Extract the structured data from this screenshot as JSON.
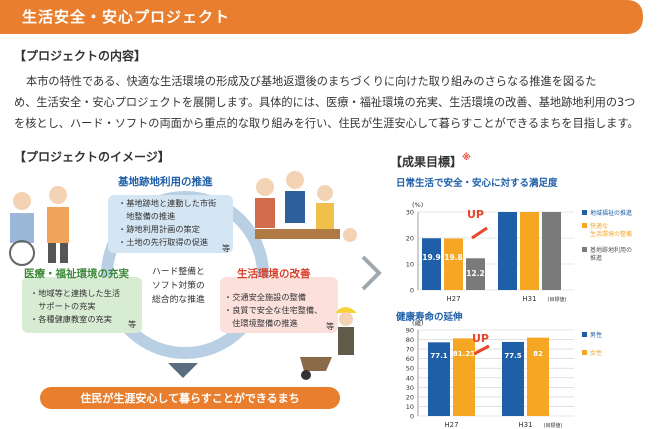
{
  "header": {
    "title": "生活安全・安心プロジェクト"
  },
  "section1": {
    "heading": "【プロジェクトの内容】",
    "lines": [
      "本市の特性である、快適な生活環境の形成及び基地返還後のまちづくりに向けた取り組みのさらなる推進を図るた",
      "め、生活安全・安心プロジェクトを展開します。具体的には、医療・福祉環境の充実、生活環境の改善、基地跡地利用の3つ",
      "を核とし、ハード・ソフトの両面から重点的な取り組みを行い、住民が生涯安心して暮らすことができるまちを目指します。"
    ]
  },
  "section2": {
    "heading": "【プロジェクトのイメージ】",
    "center": [
      "ハード整備と",
      "ソフト対策の",
      "総合的な推進"
    ],
    "nodes": {
      "base": {
        "title": "基地跡地利用の推進",
        "items": [
          "・基地跡地と連動した市街",
          "　地整備の推進",
          "・跡地利用計画の策定",
          "・土地の先行取得の促進"
        ],
        "etc": "等"
      },
      "medical": {
        "title": "医療・福祉環境の充実",
        "items": [
          "・地域等と連携した生活",
          "　サポートの充実",
          "・各種健康教室の充実"
        ],
        "etc": "等"
      },
      "living": {
        "title": "生活環境の改善",
        "items": [
          "・交通安全施設の整備",
          "・良質で安全な住宅整備、",
          "　住環境整備の推進"
        ],
        "etc": "等"
      }
    },
    "footer": "住民が生涯安心して暮らすことができるまち"
  },
  "results": {
    "heading": "【成果目標】",
    "mark": "※",
    "up_label": "UP",
    "colors": {
      "blue": "#1f5fa8",
      "orange": "#f5a623",
      "gray": "#7a7a7a",
      "accent": "#e8462a",
      "header": "#e87e2e"
    }
  },
  "chart_data": [
    {
      "type": "bar",
      "title": "日常生活で安全・安心に対する満足度",
      "ylabel": "(%)",
      "ylim": [
        0,
        30
      ],
      "yticks": [
        0,
        10,
        20,
        30
      ],
      "categories": [
        "H27",
        "H31"
      ],
      "category_notes": [
        "",
        "(目標値)"
      ],
      "series": [
        {
          "name": "地域福祉の推進",
          "values": [
            19.9,
            30
          ]
        },
        {
          "name": "快適な生活環境の整備",
          "values": [
            19.8,
            30
          ]
        },
        {
          "name": "基地跡地利用の推進",
          "values": [
            12.2,
            30
          ]
        }
      ],
      "data_labels": [
        "19.9",
        "19.8",
        "12.2",
        "",
        "",
        ""
      ]
    },
    {
      "type": "bar",
      "title": "健康寿命の延伸",
      "ylabel": "(歳)",
      "ylim": [
        0,
        90
      ],
      "yticks": [
        0,
        10,
        20,
        30,
        40,
        50,
        60,
        70,
        80,
        90
      ],
      "categories": [
        "H27",
        "H31"
      ],
      "category_notes": [
        "",
        "(目標値)"
      ],
      "series": [
        {
          "name": "男性",
          "values": [
            77.1,
            77.5
          ]
        },
        {
          "name": "女性",
          "values": [
            81.23,
            82
          ]
        }
      ],
      "data_labels": [
        "77.1",
        "81.23",
        "77.5",
        "82"
      ]
    }
  ]
}
